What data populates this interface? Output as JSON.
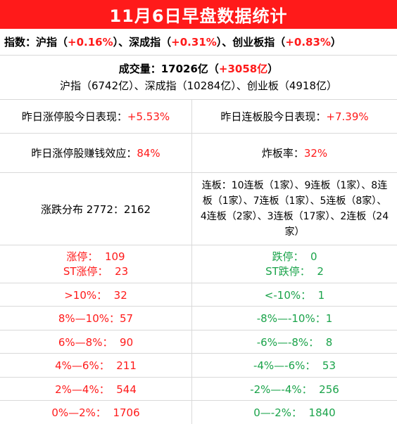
{
  "title": "11月6日早盘数据统计",
  "index_line": {
    "label": "指数：",
    "sh_name": "沪指（",
    "sh_val": "+0.16%",
    "sh_end": "）、",
    "sz_name": "深成指（",
    "sz_val": "+0.31%",
    "sz_end": "）、",
    "cy_name": "创业板指（",
    "cy_val": "+0.83%",
    "cy_end": "）"
  },
  "volume": {
    "label": "成交量：17026亿（",
    "change": "+3058亿",
    "end": "）",
    "detail": "沪指（6742亿）、深成指（10284亿）、创业板（4918亿）"
  },
  "row_perf": {
    "left_label": "昨日涨停股今日表现：",
    "left_val": "+5.53%",
    "right_label": "昨日连板股今日表现：",
    "right_val": "+7.39%"
  },
  "row_effect": {
    "left_label": "昨日涨停股赚钱效应：",
    "left_val": "84%",
    "right_label": "炸板率：",
    "right_val": "32%"
  },
  "row_dist": {
    "left": "涨跌分布 2772：2162",
    "right": "连板：10连板（1家）、9连板（1家）、8连板（1家）、7连板（1家）、5连板（8家）、4连板（2家）、3连板（17家）、2连板（24家）"
  },
  "limit": {
    "up_label": "涨停：",
    "up_val": "109",
    "st_up_label": "ST涨停：",
    "st_up_val": "23",
    "down_label": "跌停：",
    "down_val": "0",
    "st_down_label": "ST跌停：",
    "st_down_val": "2"
  },
  "buckets": [
    {
      "left": ">10%：  32",
      "right": "<-10%：  1"
    },
    {
      "left": "8%—10%：57",
      "right": "-8%—-10%：1"
    },
    {
      "left": "6%—8%：  90",
      "right": "-6%—-8%：  8"
    },
    {
      "left": "4%—6%：  211",
      "right": "-4%—-6%：  53"
    },
    {
      "left": "2%—4%：  544",
      "right": "-2%—-4%：  256"
    },
    {
      "left": "0%—2%：  1706",
      "right": "0—-2%：  1840"
    }
  ],
  "colors": {
    "accent": "#ff1a1a",
    "up": "#ff1a1a",
    "down": "#1aa34a",
    "border": "#d9d9d9"
  }
}
